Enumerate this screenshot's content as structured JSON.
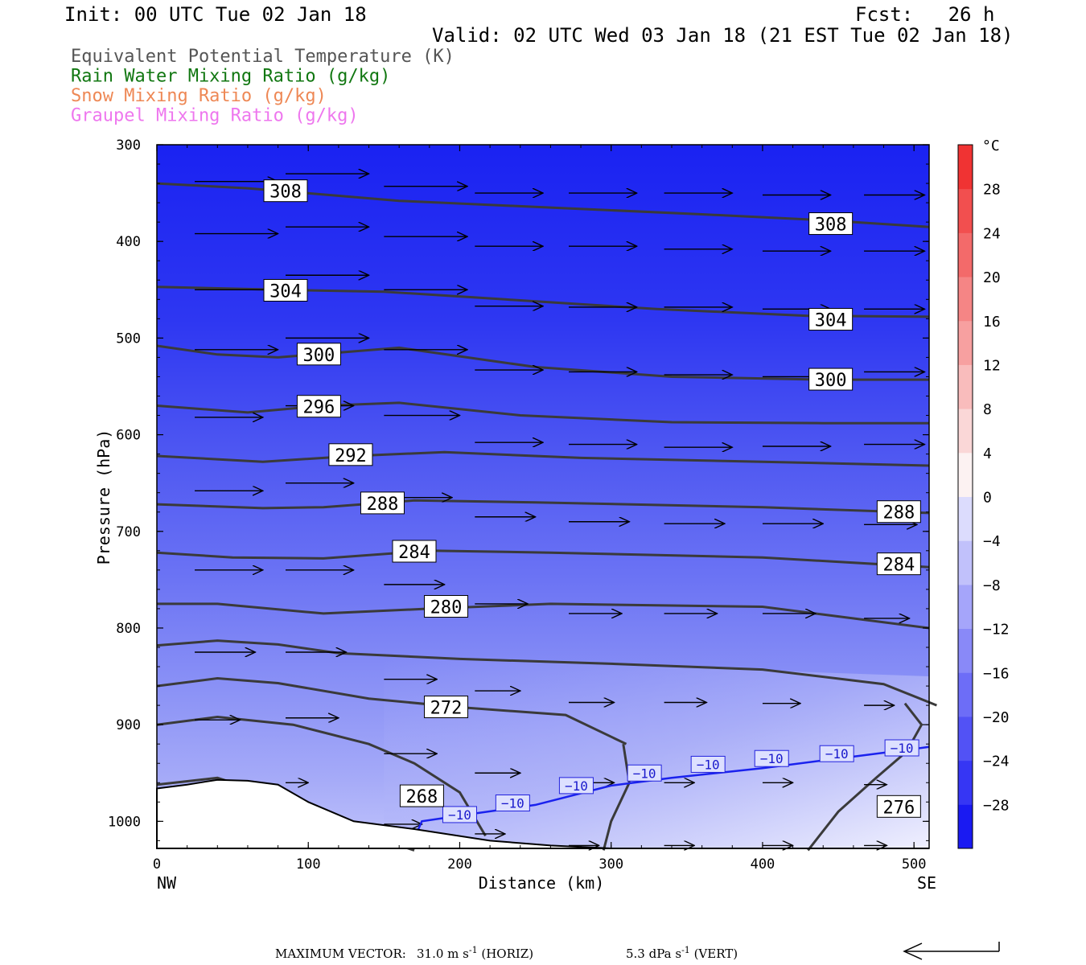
{
  "header": {
    "init": "Init: 00 UTC Tue 02 Jan 18",
    "fcst": "Fcst:   26 h",
    "valid": "Valid: 02 UTC Wed 03 Jan 18 (21 EST Tue 02 Jan 18)"
  },
  "legend": [
    {
      "label": "Equivalent Potential Temperature (K)",
      "color": "#555555"
    },
    {
      "label": "Rain Water Mixing Ratio (g/kg)",
      "color": "#117711"
    },
    {
      "label": "Snow Mixing Ratio (g/kg)",
      "color": "#ee8855"
    },
    {
      "label": "Graupel Mixing Ratio (g/kg)",
      "color": "#ee77ee"
    }
  ],
  "footer": {
    "max_vector_label": "MAXIMUM VECTOR:",
    "horiz_value": "31.0 m s",
    "horiz_unit_sup": "-1",
    "horiz_suffix": "(HORIZ)",
    "vert_value": "5.3 dPa s",
    "vert_unit_sup": "-1",
    "vert_suffix": "(VERT)"
  },
  "chart_data": {
    "type": "cross-section",
    "xlabel": "Distance (km)",
    "ylabel": "Pressure (hPa)",
    "x_endpoints": {
      "left": "NW",
      "right": "SE"
    },
    "xlim": [
      0,
      510
    ],
    "ylim": [
      300,
      1028
    ],
    "y_scale": "linear-pressure",
    "xticks": [
      0,
      100,
      200,
      300,
      400,
      500
    ],
    "yticks": [
      300,
      400,
      500,
      600,
      700,
      800,
      900,
      1000
    ],
    "colorbar": {
      "unit": "°C",
      "labels": [
        28,
        24,
        20,
        16,
        12,
        8,
        4,
        0,
        -4,
        -8,
        -12,
        -16,
        -20,
        -24,
        -28
      ],
      "range": [
        -32,
        32
      ],
      "interval": 4
    },
    "theta_e_contours": [
      {
        "value": 308,
        "points": [
          [
            0,
            340
          ],
          [
            60,
            345
          ],
          [
            160,
            358
          ],
          [
            260,
            365
          ],
          [
            360,
            372
          ],
          [
            440,
            378
          ],
          [
            510,
            385
          ]
        ],
        "labels": [
          [
            85,
            348
          ],
          [
            445,
            382
          ]
        ]
      },
      {
        "value": 304,
        "points": [
          [
            0,
            447
          ],
          [
            80,
            450
          ],
          [
            150,
            452
          ],
          [
            230,
            460
          ],
          [
            330,
            470
          ],
          [
            430,
            477
          ],
          [
            510,
            478
          ]
        ],
        "labels": [
          [
            85,
            451
          ],
          [
            445,
            481
          ]
        ]
      },
      {
        "value": 300,
        "points": [
          [
            0,
            508
          ],
          [
            40,
            517
          ],
          [
            80,
            520
          ],
          [
            160,
            510
          ],
          [
            250,
            530
          ],
          [
            340,
            540
          ],
          [
            440,
            543
          ],
          [
            510,
            543
          ]
        ],
        "labels": [
          [
            107,
            517
          ],
          [
            445,
            543
          ]
        ]
      },
      {
        "value": 296,
        "points": [
          [
            0,
            570
          ],
          [
            60,
            577
          ],
          [
            110,
            570
          ],
          [
            160,
            567
          ],
          [
            240,
            580
          ],
          [
            340,
            587
          ],
          [
            440,
            588
          ],
          [
            510,
            588
          ]
        ],
        "labels": [
          [
            107,
            571
          ]
        ]
      },
      {
        "value": 292,
        "points": [
          [
            0,
            622
          ],
          [
            70,
            628
          ],
          [
            130,
            622
          ],
          [
            190,
            618
          ],
          [
            280,
            624
          ],
          [
            400,
            628
          ],
          [
            510,
            632
          ]
        ],
        "labels": [
          [
            128,
            621
          ]
        ]
      },
      {
        "value": 288,
        "points": [
          [
            0,
            672
          ],
          [
            70,
            676
          ],
          [
            110,
            675
          ],
          [
            170,
            668
          ],
          [
            250,
            670
          ],
          [
            400,
            675
          ],
          [
            510,
            681
          ]
        ],
        "labels": [
          [
            149,
            671
          ],
          [
            490,
            680
          ]
        ]
      },
      {
        "value": 284,
        "points": [
          [
            0,
            722
          ],
          [
            50,
            727
          ],
          [
            110,
            728
          ],
          [
            180,
            720
          ],
          [
            260,
            722
          ],
          [
            400,
            727
          ],
          [
            510,
            737
          ]
        ],
        "labels": [
          [
            170,
            721
          ],
          [
            490,
            734
          ]
        ]
      },
      {
        "value": 280,
        "points": [
          [
            0,
            775
          ],
          [
            40,
            775
          ],
          [
            110,
            785
          ],
          [
            180,
            780
          ],
          [
            260,
            775
          ],
          [
            400,
            778
          ],
          [
            510,
            800
          ]
        ],
        "labels": [
          [
            191,
            778
          ]
        ]
      },
      {
        "value": 276,
        "points": [
          [
            0,
            818
          ],
          [
            40,
            813
          ],
          [
            80,
            817
          ],
          [
            120,
            826
          ],
          [
            200,
            832
          ],
          [
            300,
            837
          ],
          [
            400,
            843
          ],
          [
            480,
            858
          ],
          [
            515,
            880
          ]
        ],
        "labels": [
          [
            490,
            985
          ]
        ]
      },
      {
        "value": 276,
        "points": [
          [
            0,
            860
          ],
          [
            40,
            852
          ],
          [
            80,
            857
          ],
          [
            140,
            873
          ],
          [
            200,
            882
          ],
          [
            270,
            890
          ],
          [
            310,
            920
          ]
        ],
        "labels": []
      },
      {
        "value": 276,
        "points": [
          [
            494,
            878
          ],
          [
            505,
            900
          ],
          [
            495,
            928
          ],
          [
            475,
            955
          ],
          [
            450,
            990
          ],
          [
            430,
            1030
          ]
        ],
        "labels": []
      },
      {
        "value": 272,
        "points": [
          [
            0,
            900
          ],
          [
            40,
            892
          ],
          [
            90,
            900
          ],
          [
            140,
            920
          ],
          [
            170,
            940
          ],
          [
            200,
            970
          ],
          [
            217,
            1015
          ]
        ],
        "labels": [
          [
            191,
            882
          ]
        ]
      },
      {
        "value": 276,
        "points": [
          [
            308,
            920
          ],
          [
            312,
            960
          ],
          [
            300,
            1000
          ],
          [
            295,
            1030
          ]
        ],
        "labels": []
      },
      {
        "value": 268,
        "points": [
          [
            0,
            962
          ],
          [
            40,
            955
          ],
          [
            90,
            980
          ],
          [
            130,
            1010
          ],
          [
            170,
            1030
          ]
        ],
        "labels": [
          [
            175,
            974
          ]
        ]
      }
    ],
    "isotherm_minus10": {
      "points": [
        [
          168,
          1025
        ],
        [
          175,
          1000
        ],
        [
          205,
          993
        ],
        [
          250,
          983
        ],
        [
          300,
          963
        ],
        [
          340,
          955
        ],
        [
          400,
          945
        ],
        [
          450,
          935
        ],
        [
          510,
          923
        ]
      ],
      "labels": [
        [
          200,
          993
        ],
        [
          235,
          981
        ],
        [
          277,
          963
        ],
        [
          322,
          950
        ],
        [
          364,
          941
        ],
        [
          406,
          935
        ],
        [
          449,
          930
        ],
        [
          492,
          924
        ]
      ],
      "value": "−10"
    },
    "wind_arrows": [
      {
        "x": 25,
        "p": 338,
        "dx": 55,
        "dp": 0
      },
      {
        "x": 85,
        "p": 330,
        "dx": 55,
        "dp": 0
      },
      {
        "x": 150,
        "p": 343,
        "dx": 55,
        "dp": 0
      },
      {
        "x": 210,
        "p": 350,
        "dx": 45,
        "dp": 0
      },
      {
        "x": 272,
        "p": 350,
        "dx": 45,
        "dp": 0
      },
      {
        "x": 335,
        "p": 350,
        "dx": 45,
        "dp": 0
      },
      {
        "x": 400,
        "p": 352,
        "dx": 45,
        "dp": 0
      },
      {
        "x": 467,
        "p": 352,
        "dx": 40,
        "dp": 0
      },
      {
        "x": 25,
        "p": 392,
        "dx": 55,
        "dp": 0
      },
      {
        "x": 85,
        "p": 385,
        "dx": 55,
        "dp": 0
      },
      {
        "x": 150,
        "p": 395,
        "dx": 55,
        "dp": 0
      },
      {
        "x": 210,
        "p": 405,
        "dx": 45,
        "dp": 0
      },
      {
        "x": 272,
        "p": 405,
        "dx": 45,
        "dp": 0
      },
      {
        "x": 335,
        "p": 408,
        "dx": 45,
        "dp": 0
      },
      {
        "x": 400,
        "p": 410,
        "dx": 45,
        "dp": 0
      },
      {
        "x": 467,
        "p": 410,
        "dx": 40,
        "dp": 0
      },
      {
        "x": 25,
        "p": 450,
        "dx": 55,
        "dp": 0
      },
      {
        "x": 85,
        "p": 435,
        "dx": 55,
        "dp": 0
      },
      {
        "x": 150,
        "p": 450,
        "dx": 55,
        "dp": 0
      },
      {
        "x": 210,
        "p": 467,
        "dx": 45,
        "dp": 0
      },
      {
        "x": 272,
        "p": 468,
        "dx": 45,
        "dp": 0
      },
      {
        "x": 335,
        "p": 468,
        "dx": 45,
        "dp": 0
      },
      {
        "x": 400,
        "p": 470,
        "dx": 45,
        "dp": 0
      },
      {
        "x": 467,
        "p": 470,
        "dx": 40,
        "dp": 0
      },
      {
        "x": 25,
        "p": 512,
        "dx": 55,
        "dp": 0
      },
      {
        "x": 85,
        "p": 500,
        "dx": 55,
        "dp": 0
      },
      {
        "x": 150,
        "p": 512,
        "dx": 55,
        "dp": 0
      },
      {
        "x": 210,
        "p": 533,
        "dx": 45,
        "dp": 0
      },
      {
        "x": 272,
        "p": 535,
        "dx": 45,
        "dp": 0
      },
      {
        "x": 335,
        "p": 538,
        "dx": 45,
        "dp": 0
      },
      {
        "x": 400,
        "p": 540,
        "dx": 45,
        "dp": 0
      },
      {
        "x": 467,
        "p": 535,
        "dx": 40,
        "dp": 0
      },
      {
        "x": 25,
        "p": 582,
        "dx": 45,
        "dp": 0
      },
      {
        "x": 85,
        "p": 570,
        "dx": 45,
        "dp": 0
      },
      {
        "x": 150,
        "p": 580,
        "dx": 50,
        "dp": 0
      },
      {
        "x": 210,
        "p": 608,
        "dx": 45,
        "dp": 0
      },
      {
        "x": 272,
        "p": 610,
        "dx": 45,
        "dp": 0
      },
      {
        "x": 335,
        "p": 613,
        "dx": 45,
        "dp": 0
      },
      {
        "x": 400,
        "p": 612,
        "dx": 45,
        "dp": 0
      },
      {
        "x": 467,
        "p": 610,
        "dx": 40,
        "dp": 0
      },
      {
        "x": 25,
        "p": 658,
        "dx": 45,
        "dp": 0
      },
      {
        "x": 85,
        "p": 650,
        "dx": 45,
        "dp": 0
      },
      {
        "x": 150,
        "p": 665,
        "dx": 45,
        "dp": 0
      },
      {
        "x": 210,
        "p": 685,
        "dx": 40,
        "dp": 0
      },
      {
        "x": 272,
        "p": 690,
        "dx": 40,
        "dp": 0
      },
      {
        "x": 335,
        "p": 692,
        "dx": 40,
        "dp": 0
      },
      {
        "x": 400,
        "p": 692,
        "dx": 40,
        "dp": 0
      },
      {
        "x": 467,
        "p": 693,
        "dx": 35,
        "dp": 0
      },
      {
        "x": 25,
        "p": 740,
        "dx": 45,
        "dp": 0
      },
      {
        "x": 85,
        "p": 740,
        "dx": 45,
        "dp": 0
      },
      {
        "x": 150,
        "p": 755,
        "dx": 40,
        "dp": 0
      },
      {
        "x": 210,
        "p": 775,
        "dx": 35,
        "dp": 0
      },
      {
        "x": 272,
        "p": 785,
        "dx": 35,
        "dp": 0
      },
      {
        "x": 335,
        "p": 785,
        "dx": 35,
        "dp": 0
      },
      {
        "x": 400,
        "p": 785,
        "dx": 35,
        "dp": 0
      },
      {
        "x": 467,
        "p": 790,
        "dx": 30,
        "dp": 0
      },
      {
        "x": 25,
        "p": 825,
        "dx": 40,
        "dp": 0
      },
      {
        "x": 85,
        "p": 825,
        "dx": 40,
        "dp": 0
      },
      {
        "x": 150,
        "p": 853,
        "dx": 35,
        "dp": 0
      },
      {
        "x": 210,
        "p": 865,
        "dx": 30,
        "dp": 0
      },
      {
        "x": 272,
        "p": 877,
        "dx": 30,
        "dp": 0
      },
      {
        "x": 335,
        "p": 877,
        "dx": 28,
        "dp": 0
      },
      {
        "x": 400,
        "p": 878,
        "dx": 25,
        "dp": 0
      },
      {
        "x": 467,
        "p": 880,
        "dx": 20,
        "dp": 0
      },
      {
        "x": 25,
        "p": 895,
        "dx": 30,
        "dp": 0
      },
      {
        "x": 85,
        "p": 893,
        "dx": 35,
        "dp": 0
      },
      {
        "x": 150,
        "p": 930,
        "dx": 35,
        "dp": 0
      },
      {
        "x": 210,
        "p": 950,
        "dx": 30,
        "dp": 0
      },
      {
        "x": 272,
        "p": 960,
        "dx": 30,
        "dp": 0
      },
      {
        "x": 335,
        "p": 960,
        "dx": 20,
        "dp": 0
      },
      {
        "x": 400,
        "p": 960,
        "dx": 20,
        "dp": 0
      },
      {
        "x": 467,
        "p": 962,
        "dx": 15,
        "dp": 0
      },
      {
        "x": 25,
        "p": 963,
        "dx": 20,
        "dp": 0
      },
      {
        "x": 85,
        "p": 960,
        "dx": 15,
        "dp": 0
      },
      {
        "x": 150,
        "p": 1003,
        "dx": 25,
        "dp": 0
      },
      {
        "x": 210,
        "p": 1013,
        "dx": 20,
        "dp": 0
      },
      {
        "x": 272,
        "p": 1025,
        "dx": 20,
        "dp": 0
      },
      {
        "x": 335,
        "p": 1025,
        "dx": 20,
        "dp": 0
      },
      {
        "x": 400,
        "p": 1025,
        "dx": 20,
        "dp": 0
      },
      {
        "x": 467,
        "p": 1025,
        "dx": 15,
        "dp": 0
      }
    ],
    "terrain_surface": [
      [
        0,
        966
      ],
      [
        20,
        962
      ],
      [
        40,
        957
      ],
      [
        60,
        958
      ],
      [
        80,
        962
      ],
      [
        100,
        980
      ],
      [
        130,
        1000
      ],
      [
        170,
        1008
      ],
      [
        220,
        1020
      ],
      [
        260,
        1025
      ],
      [
        300,
        1028
      ],
      [
        510,
        1028
      ]
    ]
  }
}
